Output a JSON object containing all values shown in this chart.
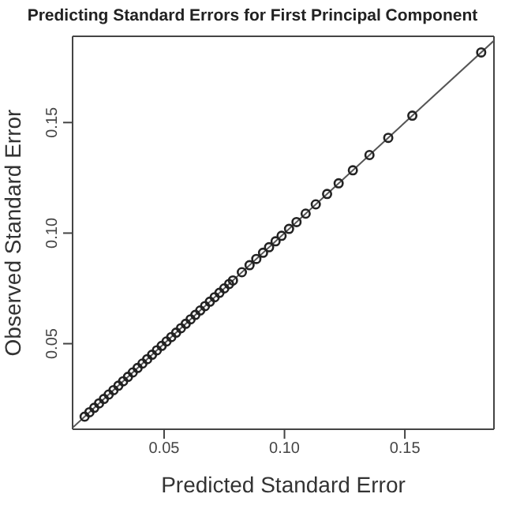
{
  "chart_data": {
    "type": "scatter",
    "title": "Predicting Standard Errors for First Principal Component",
    "xlabel": "Predicted Standard Error",
    "ylabel": "Observed Standard Error",
    "xlim": [
      0.012,
      0.187
    ],
    "ylim": [
      0.0113,
      0.189
    ],
    "xticks": [
      {
        "value": 0.05,
        "label": "0.05"
      },
      {
        "value": 0.1,
        "label": "0.10"
      },
      {
        "value": 0.15,
        "label": "0.15"
      }
    ],
    "yticks": [
      {
        "value": 0.05,
        "label": "0.05"
      },
      {
        "value": 0.1,
        "label": "0.10"
      },
      {
        "value": 0.15,
        "label": "0.15"
      }
    ],
    "grid": false,
    "legend": false,
    "series": [
      {
        "type": "line",
        "color": "#555555",
        "marker": "none",
        "x": [
          0.012,
          0.187
        ],
        "values": [
          0.012,
          0.187
        ]
      },
      {
        "color": "#222222",
        "marker": "circle",
        "x": [
          0.017,
          0.019,
          0.021,
          0.023,
          0.025,
          0.027,
          0.029,
          0.031,
          0.033,
          0.035,
          0.037,
          0.039,
          0.041,
          0.043,
          0.045,
          0.047,
          0.049,
          0.051,
          0.053,
          0.055,
          0.057,
          0.059,
          0.061,
          0.063,
          0.065,
          0.067,
          0.069,
          0.071,
          0.073,
          0.075,
          0.077,
          0.0786,
          0.0823,
          0.0855,
          0.0883,
          0.0911,
          0.0936,
          0.0963,
          0.0988,
          0.1019,
          0.105,
          0.1088,
          0.113,
          0.1177,
          0.1225,
          0.1284,
          0.1353,
          0.1431,
          0.1531,
          0.1817
        ],
        "values": [
          0.017,
          0.019,
          0.021,
          0.023,
          0.025,
          0.027,
          0.029,
          0.031,
          0.033,
          0.035,
          0.037,
          0.039,
          0.041,
          0.043,
          0.045,
          0.047,
          0.049,
          0.051,
          0.053,
          0.055,
          0.057,
          0.059,
          0.061,
          0.063,
          0.065,
          0.067,
          0.069,
          0.071,
          0.073,
          0.075,
          0.077,
          0.0786,
          0.0823,
          0.0855,
          0.0883,
          0.0911,
          0.0936,
          0.0963,
          0.0988,
          0.1019,
          0.105,
          0.1088,
          0.113,
          0.1177,
          0.1225,
          0.1284,
          0.1353,
          0.1431,
          0.1531,
          0.1817
        ]
      }
    ]
  }
}
